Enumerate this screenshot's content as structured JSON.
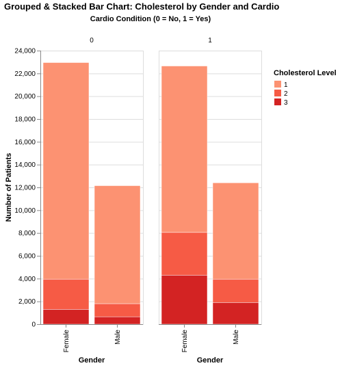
{
  "chart_data": {
    "type": "bar",
    "title": "Grouped & Stacked Bar Chart: Cholesterol by Gender and Cardio",
    "subtitle": "Cardio Condition (0 = No, 1 = Yes)",
    "facets": [
      "0",
      "1"
    ],
    "categories": [
      "Female",
      "Male"
    ],
    "xlabel": "Gender",
    "ylabel": "Number of Patients",
    "ylim": [
      0,
      24000
    ],
    "yticks": [
      0,
      2000,
      4000,
      6000,
      8000,
      10000,
      12000,
      14000,
      16000,
      18000,
      20000,
      22000,
      24000
    ],
    "ytick_labels": [
      "0",
      "2,000",
      "4,000",
      "6,000",
      "8,000",
      "10,000",
      "12,000",
      "14,000",
      "16,000",
      "18,000",
      "20,000",
      "22,000",
      "24,000"
    ],
    "grid": true,
    "legend": {
      "title": "Cholesterol Level",
      "placement": "right",
      "entries": [
        {
          "label": "1",
          "color": "#fc9272"
        },
        {
          "label": "2",
          "color": "#f65b45"
        },
        {
          "label": "3",
          "color": "#d32323"
        }
      ]
    },
    "stack_order": [
      "3",
      "2",
      "1"
    ],
    "data": [
      {
        "facet": "0",
        "category": "Female",
        "values": {
          "3": 1300,
          "2": 2650,
          "1": 19000
        }
      },
      {
        "facet": "0",
        "category": "Male",
        "values": {
          "3": 650,
          "2": 1150,
          "1": 10350
        }
      },
      {
        "facet": "1",
        "category": "Female",
        "values": {
          "3": 4300,
          "2": 3750,
          "1": 14600
        }
      },
      {
        "facet": "1",
        "category": "Male",
        "values": {
          "3": 1900,
          "2": 2050,
          "1": 8450
        }
      }
    ]
  }
}
